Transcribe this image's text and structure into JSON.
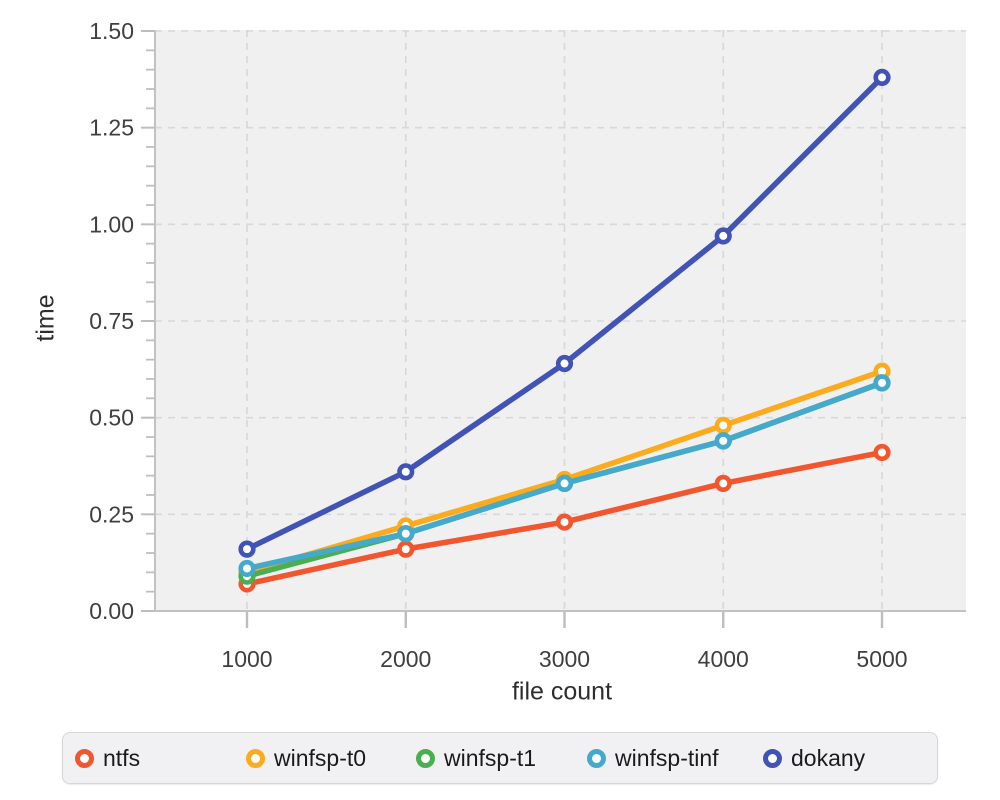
{
  "chart_data": {
    "type": "line",
    "title": "",
    "xlabel": "file count",
    "ylabel": "time",
    "x": [
      1000,
      2000,
      3000,
      4000,
      5000
    ],
    "x_tick_labels": [
      "1000",
      "2000",
      "3000",
      "4000",
      "5000"
    ],
    "y_ticks": [
      0,
      0.25,
      0.5,
      0.75,
      1.0,
      1.25,
      1.5
    ],
    "y_tick_labels": [
      "0.00",
      "0.25",
      "0.50",
      "0.75",
      "1.00",
      "1.25",
      "1.50"
    ],
    "xlim": [
      1000,
      5000
    ],
    "ylim": [
      0,
      1.5
    ],
    "y_minor_tick_step": 0.05,
    "grid": "dashed",
    "marker": "open-circle",
    "legend_position": "bottom",
    "series": [
      {
        "name": "ntfs",
        "color": "#f1572e",
        "values": [
          0.07,
          0.16,
          0.23,
          0.33,
          0.41
        ]
      },
      {
        "name": "winfsp-t0",
        "color": "#fbab1d",
        "values": [
          0.1,
          0.22,
          0.34,
          0.48,
          0.62
        ]
      },
      {
        "name": "winfsp-t1",
        "color": "#4bae50",
        "values": [
          0.09,
          0.2,
          0.33,
          0.44,
          0.59
        ]
      },
      {
        "name": "winfsp-tinf",
        "color": "#45a9cb",
        "values": [
          0.11,
          0.2,
          0.33,
          0.44,
          0.59
        ]
      },
      {
        "name": "dokany",
        "color": "#4153b4",
        "values": [
          0.16,
          0.36,
          0.64,
          0.97,
          1.38
        ]
      }
    ],
    "colors": {
      "plot_background": "#f0f0f1",
      "gridline": "#d8d8d8",
      "spine": "#c2c2c2",
      "tick": "#bdbdbd",
      "tick_label": "#3f3f3f",
      "axis_title": "#2e2e2e",
      "legend_text": "#1b1b1b"
    }
  }
}
